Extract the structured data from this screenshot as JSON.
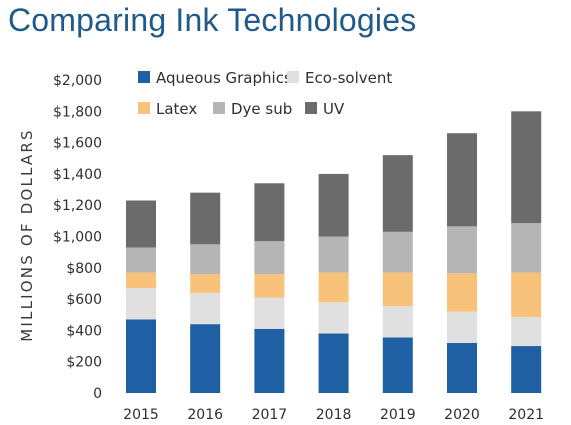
{
  "chart_data": {
    "type": "bar",
    "stacked": true,
    "title": "Comparing Ink Technologies",
    "xlabel": "",
    "ylabel": "MILLIONS OF DOLLARS",
    "ylim": [
      0,
      2000
    ],
    "y_ticks": [
      "0",
      "$200",
      "$400",
      "$600",
      "$800",
      "$1,000",
      "$1,200",
      "$1,400",
      "$1,600",
      "$1,800",
      "$2,000"
    ],
    "grid": false,
    "legend_position": "top",
    "categories": [
      "2015",
      "2016",
      "2017",
      "2018",
      "2019",
      "2020",
      "2021"
    ],
    "series": [
      {
        "name": "Aqueous Graphics",
        "color": "#1f5fa3",
        "values": [
          470,
          440,
          410,
          380,
          355,
          320,
          300
        ]
      },
      {
        "name": "Eco-solvent",
        "color": "#e0e0e0",
        "values": [
          200,
          200,
          200,
          200,
          200,
          200,
          185
        ]
      },
      {
        "name": "Latex",
        "color": "#f8c27a",
        "values": [
          100,
          120,
          150,
          190,
          215,
          245,
          285
        ]
      },
      {
        "name": "Dye sub",
        "color": "#b5b5b5",
        "values": [
          160,
          190,
          210,
          230,
          260,
          300,
          315
        ]
      },
      {
        "name": "UV",
        "color": "#6b6b6b",
        "values": [
          300,
          330,
          370,
          400,
          490,
          595,
          715
        ]
      }
    ]
  }
}
